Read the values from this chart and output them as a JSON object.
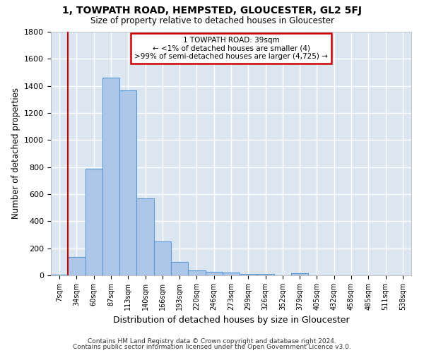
{
  "title": "1, TOWPATH ROAD, HEMPSTED, GLOUCESTER, GL2 5FJ",
  "subtitle": "Size of property relative to detached houses in Gloucester",
  "xlabel": "Distribution of detached houses by size in Gloucester",
  "ylabel": "Number of detached properties",
  "bin_labels": [
    "7sqm",
    "34sqm",
    "60sqm",
    "87sqm",
    "113sqm",
    "140sqm",
    "166sqm",
    "193sqm",
    "220sqm",
    "246sqm",
    "273sqm",
    "299sqm",
    "326sqm",
    "352sqm",
    "379sqm",
    "405sqm",
    "432sqm",
    "458sqm",
    "485sqm",
    "511sqm",
    "538sqm"
  ],
  "bar_heights": [
    5,
    135,
    790,
    1460,
    1365,
    570,
    248,
    100,
    35,
    25,
    22,
    12,
    12,
    0,
    15,
    0,
    0,
    0,
    0,
    0,
    0
  ],
  "bar_color": "#aec6e8",
  "bar_edge_color": "#5b9bd5",
  "property_label": "1 TOWPATH ROAD: 39sqm",
  "annotation_line1": "← <1% of detached houses are smaller (4)",
  "annotation_line2": ">99% of semi-detached houses are larger (4,725) →",
  "annotation_box_color": "#ffffff",
  "annotation_box_edge": "#cc0000",
  "property_line_color": "#cc0000",
  "property_line_x": 1,
  "ylim": [
    0,
    1800
  ],
  "yticks": [
    0,
    200,
    400,
    600,
    800,
    1000,
    1200,
    1400,
    1600,
    1800
  ],
  "grid_color": "#ffffff",
  "bg_color": "#dce6f1",
  "footnote1": "Contains HM Land Registry data © Crown copyright and database right 2024.",
  "footnote2": "Contains public sector information licensed under the Open Government Licence v3.0."
}
